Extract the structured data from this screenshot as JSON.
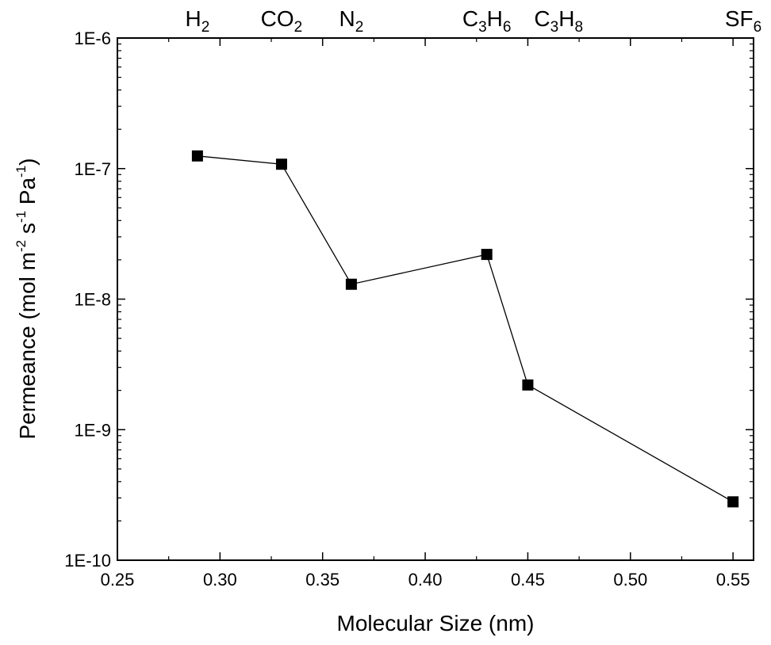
{
  "chart_data": {
    "type": "line",
    "title": "",
    "xlabel": "Molecular Size (nm)",
    "ylabel": {
      "parts": [
        {
          "text": "Permeance (mol m",
          "sup": false
        },
        {
          "text": "-2",
          "sup": true
        },
        {
          "text": " s",
          "sup": false
        },
        {
          "text": "-1",
          "sup": true
        },
        {
          "text": " Pa",
          "sup": false
        },
        {
          "text": "-1",
          "sup": true
        },
        {
          "text": ")",
          "sup": false
        }
      ]
    },
    "xlim": [
      0.25,
      0.56
    ],
    "ylim": [
      1e-10,
      1e-06
    ],
    "y_scale": "log",
    "x_ticks": [
      {
        "value": 0.25,
        "label": "0.25"
      },
      {
        "value": 0.3,
        "label": "0.30"
      },
      {
        "value": 0.35,
        "label": "0.35"
      },
      {
        "value": 0.4,
        "label": "0.40"
      },
      {
        "value": 0.45,
        "label": "0.45"
      },
      {
        "value": 0.5,
        "label": "0.50"
      },
      {
        "value": 0.55,
        "label": "0.55"
      }
    ],
    "y_ticks": [
      {
        "value": 1e-10,
        "label": "1E-10"
      },
      {
        "value": 1e-09,
        "label": "1E-9"
      },
      {
        "value": 1e-08,
        "label": "1E-8"
      },
      {
        "value": 1e-07,
        "label": "1E-7"
      },
      {
        "value": 1e-06,
        "label": "1E-6"
      }
    ],
    "grid": false,
    "marker": "square",
    "line_color": "#000000",
    "marker_color": "#000000",
    "series": [
      {
        "x": [
          0.289,
          0.33,
          0.364,
          0.43,
          0.45,
          0.55
        ],
        "y": [
          1.25e-07,
          1.08e-07,
          1.3e-08,
          2.2e-08,
          2.2e-09,
          2.8e-10
        ]
      }
    ],
    "annotations": [
      {
        "x": 0.289,
        "parts": [
          {
            "text": "H",
            "sub": false
          },
          {
            "text": "2",
            "sub": true
          }
        ]
      },
      {
        "x": 0.33,
        "parts": [
          {
            "text": "CO",
            "sub": false
          },
          {
            "text": "2",
            "sub": true
          }
        ]
      },
      {
        "x": 0.364,
        "parts": [
          {
            "text": "N",
            "sub": false
          },
          {
            "text": "2",
            "sub": true
          }
        ]
      },
      {
        "x": 0.43,
        "parts": [
          {
            "text": "C",
            "sub": false
          },
          {
            "text": "3",
            "sub": true
          },
          {
            "text": "H",
            "sub": false
          },
          {
            "text": "6",
            "sub": true
          }
        ]
      },
      {
        "x": 0.465,
        "parts": [
          {
            "text": "C",
            "sub": false
          },
          {
            "text": "3",
            "sub": true
          },
          {
            "text": "H",
            "sub": false
          },
          {
            "text": "8",
            "sub": true
          }
        ]
      },
      {
        "x": 0.555,
        "parts": [
          {
            "text": "SF",
            "sub": false
          },
          {
            "text": "6",
            "sub": true
          }
        ]
      }
    ]
  }
}
